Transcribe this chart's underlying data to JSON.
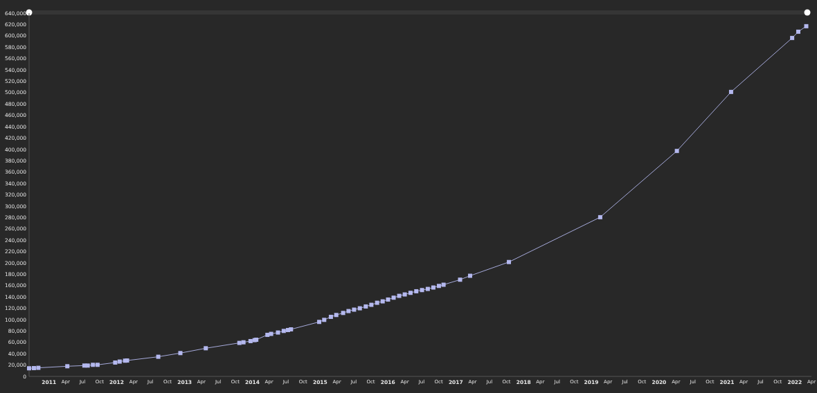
{
  "chart_data": {
    "type": "line",
    "marker": "square",
    "line_style": "solid",
    "x": [
      "2010-09-16",
      "2010-10-12",
      "2010-11-05",
      "2011-04-10",
      "2011-07-11",
      "2011-07-29",
      "2011-08-26",
      "2011-09-20",
      "2011-12-24",
      "2012-01-17",
      "2012-02-15",
      "2012-02-26",
      "2012-08-12",
      "2012-12-09",
      "2013-04-25",
      "2013-10-23",
      "2013-11-14",
      "2013-12-22",
      "2014-01-13",
      "2014-01-22",
      "2014-03-23",
      "2014-04-12",
      "2014-05-19",
      "2014-06-19",
      "2014-07-12",
      "2014-07-28",
      "2014-12-27",
      "2015-01-23",
      "2015-02-28",
      "2015-03-29",
      "2015-05-05",
      "2015-06-03",
      "2015-07-03",
      "2015-08-03",
      "2015-09-04",
      "2015-10-04",
      "2015-11-04",
      "2015-12-04",
      "2016-01-02",
      "2016-02-01",
      "2016-03-02",
      "2016-04-01",
      "2016-05-02",
      "2016-06-02",
      "2016-07-03",
      "2016-08-03",
      "2016-09-02",
      "2016-10-02",
      "2016-10-27",
      "2017-01-24",
      "2017-03-19",
      "2017-10-14",
      "2019-02-18",
      "2020-04-06",
      "2021-01-23",
      "2021-12-18",
      "2022-01-20",
      "2022-03-04"
    ],
    "series": [
      {
        "color": "#b4b8ee",
        "values": [
          14300,
          14600,
          15100,
          17900,
          19100,
          19100,
          20400,
          20400,
          24400,
          26100,
          27700,
          28000,
          34600,
          41100,
          49600,
          59000,
          60100,
          62200,
          63900,
          64600,
          73200,
          74900,
          77300,
          80100,
          81700,
          82900,
          96000,
          99600,
          104900,
          108200,
          111800,
          115100,
          117600,
          120000,
          123200,
          126100,
          129700,
          132200,
          135400,
          138700,
          141900,
          144400,
          147200,
          150000,
          152100,
          154100,
          156600,
          159400,
          161500,
          170400,
          177300,
          201500,
          280500,
          397200,
          501200,
          596300,
          607300,
          617000
        ]
      }
    ],
    "xlim": [
      "2010-09-16",
      "2022-04-01"
    ],
    "xticks": [
      {
        "value": "2011-01-01",
        "label": "2011"
      },
      {
        "value": "2011-04-01",
        "label": "Apr"
      },
      {
        "value": "2011-07-01",
        "label": "Jul"
      },
      {
        "value": "2011-10-01",
        "label": "Oct"
      },
      {
        "value": "2012-01-01",
        "label": "2012"
      },
      {
        "value": "2012-04-01",
        "label": "Apr"
      },
      {
        "value": "2012-07-01",
        "label": "Jul"
      },
      {
        "value": "2012-10-01",
        "label": "Oct"
      },
      {
        "value": "2013-01-01",
        "label": "2013"
      },
      {
        "value": "2013-04-01",
        "label": "Apr"
      },
      {
        "value": "2013-07-01",
        "label": "Jul"
      },
      {
        "value": "2013-10-01",
        "label": "Oct"
      },
      {
        "value": "2014-01-01",
        "label": "2014"
      },
      {
        "value": "2014-04-01",
        "label": "Apr"
      },
      {
        "value": "2014-07-01",
        "label": "Jul"
      },
      {
        "value": "2014-10-01",
        "label": "Oct"
      },
      {
        "value": "2015-01-01",
        "label": "2015"
      },
      {
        "value": "2015-04-01",
        "label": "Apr"
      },
      {
        "value": "2015-07-01",
        "label": "Jul"
      },
      {
        "value": "2015-10-01",
        "label": "Oct"
      },
      {
        "value": "2016-01-01",
        "label": "2016"
      },
      {
        "value": "2016-04-01",
        "label": "Apr"
      },
      {
        "value": "2016-07-01",
        "label": "Jul"
      },
      {
        "value": "2016-10-01",
        "label": "Oct"
      },
      {
        "value": "2017-01-01",
        "label": "2017"
      },
      {
        "value": "2017-04-01",
        "label": "Apr"
      },
      {
        "value": "2017-07-01",
        "label": "Jul"
      },
      {
        "value": "2017-10-01",
        "label": "Oct"
      },
      {
        "value": "2018-01-01",
        "label": "2018"
      },
      {
        "value": "2018-04-01",
        "label": "Apr"
      },
      {
        "value": "2018-07-01",
        "label": "Jul"
      },
      {
        "value": "2018-10-01",
        "label": "Oct"
      },
      {
        "value": "2019-01-01",
        "label": "2019"
      },
      {
        "value": "2019-04-01",
        "label": "Apr"
      },
      {
        "value": "2019-07-01",
        "label": "Jul"
      },
      {
        "value": "2019-10-01",
        "label": "Oct"
      },
      {
        "value": "2020-01-01",
        "label": "2020"
      },
      {
        "value": "2020-04-01",
        "label": "Apr"
      },
      {
        "value": "2020-07-01",
        "label": "Jul"
      },
      {
        "value": "2020-10-01",
        "label": "Oct"
      },
      {
        "value": "2021-01-01",
        "label": "2021"
      },
      {
        "value": "2021-04-01",
        "label": "Apr"
      },
      {
        "value": "2021-07-01",
        "label": "Jul"
      },
      {
        "value": "2021-10-01",
        "label": "Oct"
      },
      {
        "value": "2022-01-01",
        "label": "2022"
      },
      {
        "value": "2022-04-01",
        "label": "Apr"
      }
    ],
    "ylim": [
      0,
      640000
    ],
    "yticks": [
      {
        "value": 0,
        "label": "0"
      },
      {
        "value": 20000,
        "label": "20,000"
      },
      {
        "value": 40000,
        "label": "40,000"
      },
      {
        "value": 60000,
        "label": "60,000"
      },
      {
        "value": 80000,
        "label": "80,000"
      },
      {
        "value": 100000,
        "label": "100,000"
      },
      {
        "value": 120000,
        "label": "120,000"
      },
      {
        "value": 140000,
        "label": "140,000"
      },
      {
        "value": 160000,
        "label": "160,000"
      },
      {
        "value": 180000,
        "label": "180,000"
      },
      {
        "value": 200000,
        "label": "200,000"
      },
      {
        "value": 220000,
        "label": "220,000"
      },
      {
        "value": 240000,
        "label": "240,000"
      },
      {
        "value": 260000,
        "label": "260,000"
      },
      {
        "value": 280000,
        "label": "280,000"
      },
      {
        "value": 300000,
        "label": "300,000"
      },
      {
        "value": 320000,
        "label": "320,000"
      },
      {
        "value": 340000,
        "label": "340,000"
      },
      {
        "value": 360000,
        "label": "360,000"
      },
      {
        "value": 380000,
        "label": "380,000"
      },
      {
        "value": 400000,
        "label": "400,000"
      },
      {
        "value": 420000,
        "label": "420,000"
      },
      {
        "value": 440000,
        "label": "440,000"
      },
      {
        "value": 460000,
        "label": "460,000"
      },
      {
        "value": 480000,
        "label": "480,000"
      },
      {
        "value": 500000,
        "label": "500,000"
      },
      {
        "value": 520000,
        "label": "520,000"
      },
      {
        "value": 540000,
        "label": "540,000"
      },
      {
        "value": 560000,
        "label": "560,000"
      },
      {
        "value": 580000,
        "label": "580,000"
      },
      {
        "value": 600000,
        "label": "600,000"
      },
      {
        "value": 620000,
        "label": "620,000"
      },
      {
        "value": 640000,
        "label": "640,000"
      }
    ]
  }
}
